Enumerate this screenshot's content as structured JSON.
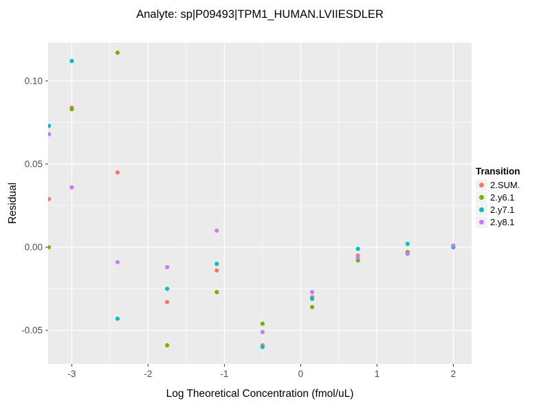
{
  "chart_data": {
    "type": "scatter",
    "title": "Analyte: sp|P09493|TPM1_HUMAN.LVIIESDLER",
    "xlabel": "Log Theoretical Concentration (fmol/uL)",
    "ylabel": "Residual",
    "xlim": [
      -3.31,
      2.24
    ],
    "ylim": [
      -0.0702,
      0.1231
    ],
    "x_major_ticks": [
      -3,
      -2,
      -1,
      0,
      1,
      2
    ],
    "x_minor_ticks": [
      -2.5,
      -1.5,
      -0.5,
      0.5,
      1.5
    ],
    "y_major_ticks": [
      -0.05,
      0.0,
      0.05,
      0.1
    ],
    "y_minor_ticks": [
      -0.025,
      0.025,
      0.075
    ],
    "x_tick_labels": [
      "-3",
      "-2",
      "-1",
      "0",
      "1",
      "2"
    ],
    "y_tick_labels": [
      "-0.05",
      "0.00",
      "0.05",
      "0.10"
    ],
    "grid": true,
    "panel_background": "#EBEBEB",
    "gridline_color": "#FFFFFF",
    "tick_label_color": "#4D4D4D",
    "legend_position": "right",
    "legend_title": "Transition",
    "series": [
      {
        "name": "2.SUM.",
        "color": "#F8766D",
        "points": [
          [
            -3.3,
            0.029
          ],
          [
            -3.0,
            0.084
          ],
          [
            -2.4,
            0.045
          ],
          [
            -1.75,
            -0.033
          ],
          [
            -1.1,
            -0.014
          ],
          [
            -0.5,
            -0.059
          ],
          [
            0.15,
            -0.03
          ],
          [
            0.75,
            -0.005
          ],
          [
            1.4,
            -0.003
          ],
          [
            2.0,
            0.001
          ]
        ]
      },
      {
        "name": "2.y6.1",
        "color": "#7CAE00",
        "points": [
          [
            -3.3,
            0.0
          ],
          [
            -3.0,
            0.083
          ],
          [
            -2.4,
            0.117
          ],
          [
            -1.75,
            -0.059
          ],
          [
            -1.1,
            -0.027
          ],
          [
            -0.5,
            -0.046
          ],
          [
            0.15,
            -0.036
          ],
          [
            0.75,
            -0.008
          ],
          [
            1.4,
            -0.003
          ],
          [
            2.0,
            0.0
          ]
        ]
      },
      {
        "name": "2.y7.1",
        "color": "#00BFC4",
        "points": [
          [
            -3.3,
            0.073
          ],
          [
            -3.0,
            0.112
          ],
          [
            -2.4,
            -0.043
          ],
          [
            -1.75,
            -0.025
          ],
          [
            -1.1,
            -0.01
          ],
          [
            -0.5,
            -0.06
          ],
          [
            0.15,
            -0.031
          ],
          [
            0.75,
            -0.001
          ],
          [
            1.4,
            0.002
          ],
          [
            2.0,
            0.0
          ]
        ]
      },
      {
        "name": "2.y8.1",
        "color": "#C77CFF",
        "points": [
          [
            -3.3,
            0.068
          ],
          [
            -3.0,
            0.036
          ],
          [
            -2.4,
            -0.009
          ],
          [
            -1.75,
            -0.012
          ],
          [
            -1.1,
            0.01
          ],
          [
            -0.5,
            -0.051
          ],
          [
            0.15,
            -0.027
          ],
          [
            0.75,
            -0.006
          ],
          [
            1.4,
            -0.004
          ],
          [
            2.0,
            0.001
          ]
        ]
      }
    ]
  }
}
